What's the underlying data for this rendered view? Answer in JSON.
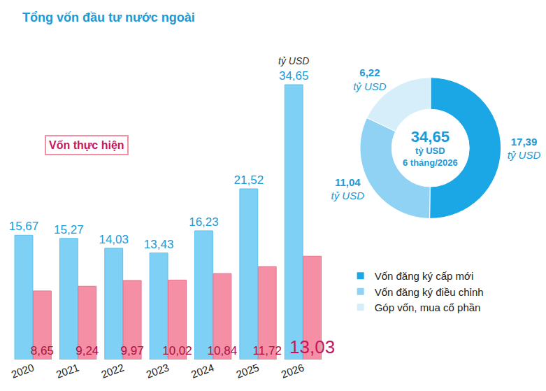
{
  "chart_data": [
    {
      "type": "bar",
      "categories": [
        "2020",
        "2021",
        "2022",
        "2023",
        "2024",
        "2025",
        "2026"
      ],
      "series": [
        {
          "name": "Tổng vốn đầu tư nước ngoài",
          "color": "#7fd0f5",
          "values": [
            15.67,
            15.27,
            14.03,
            13.43,
            16.23,
            21.52,
            34.65
          ],
          "value_labels": [
            "15,67",
            "15,27",
            "14,03",
            "13,43",
            "16,23",
            "21,52",
            "34,65"
          ]
        },
        {
          "name": "Vốn thực hiện",
          "color": "#f48fa6",
          "values": [
            8.65,
            9.24,
            9.97,
            10.02,
            10.84,
            11.72,
            13.03
          ],
          "value_labels": [
            "8,65",
            "9,24",
            "9,97",
            "10,02",
            "10,84",
            "11,72",
            "13,03"
          ]
        }
      ],
      "annotations": [
        "tỷ USD"
      ],
      "ylim": [
        0,
        40
      ],
      "tick_labels": "x",
      "data_labels": true,
      "grid": false,
      "stacked": false
    },
    {
      "type": "pie",
      "categories": [
        "Vốn đăng ký cấp mới",
        "Vốn đăng ký điều chỉnh",
        "Góp vốn, mua cổ phần"
      ],
      "values": [
        17.39,
        11.04,
        6.22
      ],
      "value_labels": [
        "17,39 tỷ USD",
        "11,04 tỷ USD",
        "6,22 tỷ USD"
      ],
      "colors": [
        "#1ba6e6",
        "#8fd2f3",
        "#d5eefa"
      ],
      "center_text": [
        "34,65",
        "tỷ USD",
        "6 tháng/2026"
      ],
      "data_labels": true,
      "legend": "bottom"
    }
  ]
}
